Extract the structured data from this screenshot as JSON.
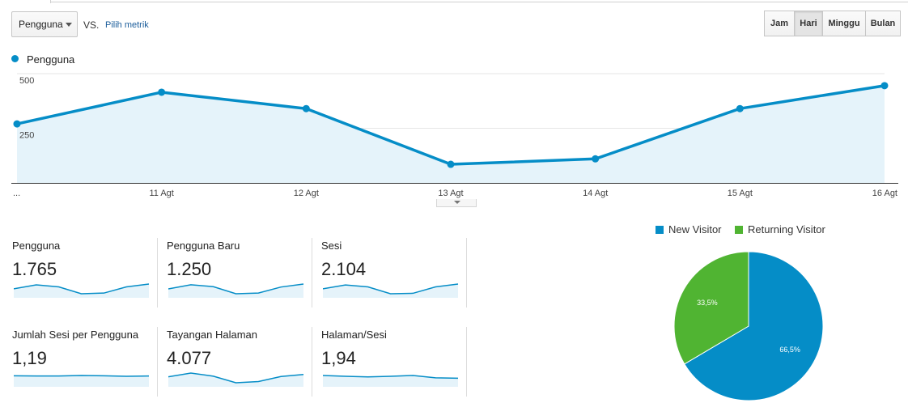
{
  "controls": {
    "metric_select": "Pengguna",
    "vs": "VS.",
    "pick_metric": "Pilih metrik",
    "granularity": [
      {
        "label": "Jam",
        "active": false
      },
      {
        "label": "Hari",
        "active": true
      },
      {
        "label": "Minggu",
        "active": false
      },
      {
        "label": "Bulan",
        "active": false
      }
    ]
  },
  "colors": {
    "series": "#058dc7",
    "fill": "#e5f3fa",
    "new_visitor": "#058dc7",
    "returning_visitor": "#50b432"
  },
  "chart_data": [
    {
      "type": "area",
      "series": [
        {
          "name": "Pengguna",
          "values": [
            270,
            415,
            340,
            85,
            110,
            340,
            445
          ]
        }
      ],
      "categories": [
        "...",
        "11 Agt",
        "12 Agt",
        "13 Agt",
        "14 Agt",
        "15 Agt",
        "16 Agt"
      ],
      "yticks": [
        "500",
        "250"
      ],
      "ylim": [
        0,
        500
      ],
      "grid": true
    },
    {
      "type": "pie",
      "labels": [
        "New Visitor",
        "Returning Visitor"
      ],
      "values": [
        66.5,
        33.5
      ],
      "value_labels": [
        "66,5%",
        "33,5%"
      ],
      "legend": "top"
    }
  ],
  "metrics": [
    {
      "label": "Pengguna",
      "value": "1.765",
      "spark": [
        270,
        415,
        340,
        85,
        110,
        340,
        445
      ]
    },
    {
      "label": "Pengguna Baru",
      "value": "1.250",
      "spark": [
        190,
        300,
        250,
        60,
        80,
        240,
        320
      ]
    },
    {
      "label": "Sesi",
      "value": "2.104",
      "spark": [
        320,
        480,
        400,
        110,
        130,
        400,
        520
      ]
    },
    {
      "label": "Jumlah Sesi per Pengguna",
      "value": "1,19",
      "spark": [
        1.19,
        1.18,
        1.18,
        1.2,
        1.19,
        1.17,
        1.18
      ]
    },
    {
      "label": "Tayangan Halaman",
      "value": "4.077",
      "spark": [
        700,
        1050,
        760,
        150,
        260,
        730,
        920
      ]
    },
    {
      "label": "Halaman/Sesi",
      "value": "1,94",
      "spark": [
        2.05,
        2.0,
        1.96,
        2.0,
        2.05,
        1.9,
        1.88
      ]
    }
  ]
}
